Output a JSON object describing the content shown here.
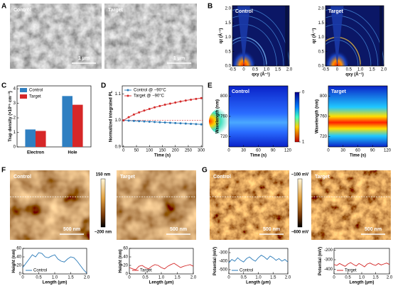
{
  "chart_data": [
    {
      "type": "micrograph",
      "panel": "A",
      "images": [
        {
          "label": "Control",
          "scale_bar": "1 μm"
        },
        {
          "label": "Target",
          "scale_bar": "1 μm"
        }
      ]
    },
    {
      "type": "giwaxs",
      "panel": "B",
      "plots": [
        {
          "label": "Control",
          "xlabel": "qxy (Å⁻¹)",
          "ylabel": "qz (Å⁻¹)",
          "xlim": [
            -0.5,
            2
          ],
          "xticks": [
            -0.5,
            0,
            0.5,
            {
              "value": 1,
              "label": "1.0"
            },
            1.5,
            {
              "value": 2,
              "label": "2.0"
            }
          ],
          "ylim": [
            0,
            2.1
          ],
          "yticks": [
            {
              "value": 0,
              "label": "0.0"
            },
            0.5,
            {
              "value": 1,
              "label": "1.0"
            },
            1.5,
            {
              "value": 2,
              "label": "2.0"
            }
          ]
        },
        {
          "label": "Target",
          "xlabel": "qxy (Å⁻¹)",
          "ylabel": "qz (Å⁻¹)",
          "xlim": [
            -0.5,
            2
          ],
          "xticks": [
            -0.5,
            0,
            0.5,
            {
              "value": 1,
              "label": "1.0"
            },
            1.5,
            {
              "value": 2,
              "label": "2.0"
            }
          ],
          "ylim": [
            0,
            2.1
          ],
          "yticks": [
            {
              "value": 0,
              "label": "0.0"
            },
            0.5,
            {
              "value": 1,
              "label": "1.0"
            },
            1.5,
            {
              "value": 2,
              "label": "2.0"
            }
          ]
        }
      ]
    },
    {
      "type": "bar",
      "panel": "C",
      "ylabel": "Trap density (×10¹⁵ cm⁻³)",
      "categories": [
        "Electron",
        "Hole"
      ],
      "series": [
        {
          "name": "Control",
          "color": "#2f7fc1",
          "values": [
            1.2,
            3.5
          ]
        },
        {
          "name": "Target",
          "color": "#d62728",
          "values": [
            1.1,
            2.9
          ]
        }
      ],
      "ylim": [
        0,
        4.2
      ],
      "yticks": [
        0,
        1,
        2,
        3,
        4
      ],
      "legend": "upper left"
    },
    {
      "type": "line",
      "panel": "D",
      "xlabel": "Time (s)",
      "ylabel": "Normalized integrated PL",
      "x": [
        0,
        20,
        40,
        60,
        80,
        100,
        120,
        140,
        160,
        180,
        200,
        220,
        240,
        260,
        280,
        300
      ],
      "series": [
        {
          "name": "Control @ −90°C",
          "color": "#2a7ab8",
          "values": [
            1.0,
            0.999,
            0.998,
            0.997,
            0.996,
            0.995,
            0.994,
            0.993,
            0.992,
            0.991,
            0.99,
            0.989,
            0.988,
            0.987,
            0.986,
            0.985
          ]
        },
        {
          "name": "Target @ −90°C",
          "color": "#d42a2a",
          "values": [
            1.0,
            1.012,
            1.022,
            1.03,
            1.037,
            1.043,
            1.049,
            1.054,
            1.059,
            1.063,
            1.067,
            1.071,
            1.075,
            1.078,
            1.081,
            1.084
          ]
        }
      ],
      "reference_line": 1,
      "xlim": [
        -5,
        305
      ],
      "xticks": [
        0,
        50,
        100,
        150,
        200,
        250,
        300
      ],
      "ylim": [
        0.9,
        1.13
      ],
      "yticks": [
        0.9,
        {
          "value": 1,
          "label": "1.0"
        },
        1.1
      ],
      "legend": "upper left"
    },
    {
      "type": "heatmap",
      "panel": "E",
      "colorbar": {
        "lim": [
          0,
          1
        ],
        "ticks": [
          0,
          1
        ]
      },
      "plots": [
        {
          "label": "Control",
          "xlabel": "Time (s)",
          "ylabel": "Wavelength (nm)",
          "xlim": [
            0,
            120
          ],
          "xticks": [
            0,
            30,
            60,
            90,
            120
          ],
          "ylim": [
            700,
            820
          ],
          "yticks": [
            720,
            760,
            800
          ]
        },
        {
          "label": "Target",
          "xlabel": "Time (s)",
          "ylabel": "Wavelength (nm)",
          "xlim": [
            0,
            120
          ],
          "xticks": [
            0,
            30,
            60,
            90,
            120
          ],
          "ylim": [
            700,
            820
          ],
          "yticks": [
            720,
            760,
            800
          ]
        }
      ]
    },
    {
      "type": "afm",
      "panel": "F",
      "colorbar": {
        "max_label": "150 nm",
        "min_label": "−200 nm"
      },
      "images": [
        {
          "label": "Control",
          "scale_bar": "500 nm"
        },
        {
          "label": "Target",
          "scale_bar": "500 nm"
        }
      ],
      "profiles": [
        {
          "xlabel": "Length (μm)",
          "ylabel": "Height (nm)",
          "xlim": [
            0,
            2
          ],
          "xticks": [
            0,
            0.5,
            {
              "value": 1,
              "label": "1.0"
            },
            1.5,
            {
              "value": 2,
              "label": "2.0"
            }
          ],
          "ylim": [
            0,
            60
          ],
          "yticks": [
            0,
            20,
            40,
            60
          ],
          "x": [
            0,
            0.1,
            0.2,
            0.3,
            0.4,
            0.5,
            0.6,
            0.7,
            0.8,
            0.9,
            1,
            1.1,
            1.2,
            1.3,
            1.4,
            1.5,
            1.6,
            1.7,
            1.8,
            1.9,
            2
          ],
          "series": [
            {
              "name": "Control",
              "color": "#2a7ab8",
              "values": [
                15,
                25,
                35,
                45,
                40,
                50,
                48,
                40,
                38,
                42,
                45,
                35,
                30,
                28,
                35,
                40,
                38,
                30,
                20,
                10,
                2
              ]
            }
          ]
        },
        {
          "xlabel": "Length (μm)",
          "ylabel": "Height (nm)",
          "xlim": [
            0,
            2
          ],
          "xticks": [
            0,
            0.5,
            {
              "value": 1,
              "label": "1.0"
            },
            1.5,
            {
              "value": 2,
              "label": "2.0"
            }
          ],
          "ylim": [
            0,
            60
          ],
          "yticks": [
            0,
            20,
            40,
            60
          ],
          "x": [
            0,
            0.1,
            0.2,
            0.3,
            0.4,
            0.5,
            0.6,
            0.7,
            0.8,
            0.9,
            1,
            1.1,
            1.2,
            1.3,
            1.4,
            1.5,
            1.6,
            1.7,
            1.8,
            1.9,
            2
          ],
          "series": [
            {
              "name": "Target",
              "color": "#d42a2a",
              "values": [
                15,
                12,
                10,
                18,
                20,
                15,
                12,
                18,
                22,
                20,
                15,
                12,
                18,
                22,
                25,
                20,
                15,
                18,
                20,
                22,
                18
              ]
            }
          ]
        }
      ]
    },
    {
      "type": "kpfm",
      "panel": "G",
      "colorbar": {
        "max_label": "−100 mV",
        "min_label": "−600 mV"
      },
      "images": [
        {
          "label": "Control",
          "scale_bar": "500 nm"
        },
        {
          "label": "Target",
          "scale_bar": "500 nm"
        }
      ],
      "profiles": [
        {
          "xlabel": "Length (μm)",
          "ylabel": "Potential (mV)",
          "xlim": [
            0,
            2
          ],
          "xticks": [
            0,
            0.5,
            {
              "value": 1,
              "label": "1.0"
            },
            1.5,
            {
              "value": 2,
              "label": "2.0"
            }
          ],
          "ylim": [
            -550,
            -250
          ],
          "yticks": [
            -500,
            -400,
            -300
          ],
          "x": [
            0,
            0.1,
            0.2,
            0.3,
            0.4,
            0.5,
            0.6,
            0.7,
            0.8,
            0.9,
            1,
            1.1,
            1.2,
            1.3,
            1.4,
            1.5,
            1.6,
            1.7,
            1.8,
            1.9,
            2
          ],
          "series": [
            {
              "name": "Control",
              "color": "#2a7ab8",
              "values": [
                -420,
                -380,
                -400,
                -360,
                -390,
                -410,
                -370,
                -350,
                -380,
                -400,
                -360,
                -330,
                -350,
                -380,
                -340,
                -360,
                -390,
                -370,
                -400,
                -380,
                -410
              ]
            }
          ]
        },
        {
          "xlabel": "Length (μm)",
          "ylabel": "Potential (mV)",
          "xlim": [
            0,
            2
          ],
          "xticks": [
            0,
            0.5,
            {
              "value": 1,
              "label": "1.0"
            },
            1.5,
            {
              "value": 2,
              "label": "2.0"
            }
          ],
          "ylim": [
            -450,
            -180
          ],
          "yticks": [
            -400,
            -300,
            -200
          ],
          "x": [
            0,
            0.1,
            0.2,
            0.3,
            0.4,
            0.5,
            0.6,
            0.7,
            0.8,
            0.9,
            1,
            1.1,
            1.2,
            1.3,
            1.4,
            1.5,
            1.6,
            1.7,
            1.8,
            1.9,
            2
          ],
          "series": [
            {
              "name": "Target",
              "color": "#d42a2a",
              "values": [
                -350,
                -360,
                -340,
                -355,
                -370,
                -345,
                -330,
                -350,
                -365,
                -340,
                -355,
                -375,
                -345,
                -335,
                -350,
                -360,
                -340,
                -355,
                -345,
                -335,
                -350
              ]
            }
          ]
        }
      ]
    }
  ]
}
